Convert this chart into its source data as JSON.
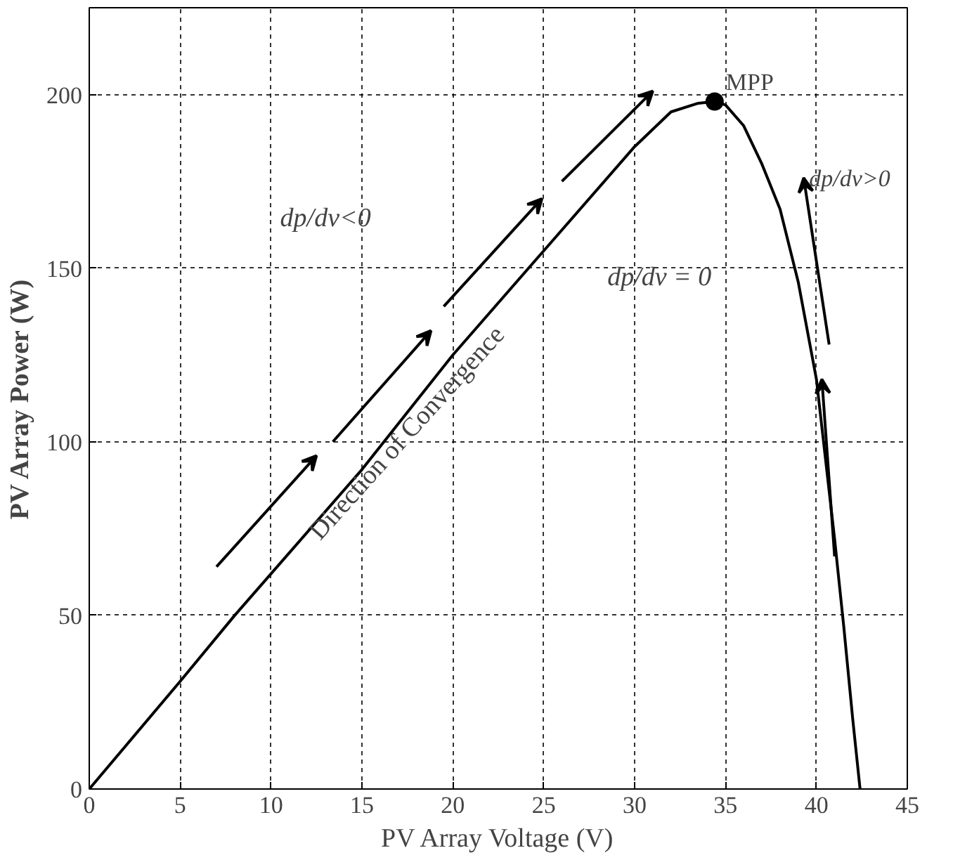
{
  "chart_data": {
    "type": "line",
    "xlabel": "PV Array Voltage (V)",
    "ylabel": "PV Array Power (W)",
    "series": [
      {
        "color": "#000000",
        "marker": "none",
        "x": [
          0,
          5,
          8,
          15,
          20,
          25,
          30,
          32,
          33.5,
          34.4,
          35,
          36,
          37,
          38,
          39,
          40,
          41,
          41.5,
          42,
          42.4
        ],
        "values": [
          0,
          31,
          50,
          92,
          125,
          155,
          185,
          195,
          197.5,
          198,
          197,
          191,
          180,
          167,
          146,
          118,
          72,
          47,
          20,
          0
        ]
      },
      {
        "type": "scatter",
        "color": "#000000",
        "marker": "circle",
        "x": [
          34.4
        ],
        "values": [
          198
        ]
      }
    ],
    "xlim": [
      0,
      45
    ],
    "ylim": [
      0,
      225
    ],
    "xticks": [
      0,
      5,
      10,
      15,
      20,
      25,
      30,
      35,
      40,
      45
    ],
    "yticks": [
      0,
      50,
      100,
      150,
      200
    ],
    "grid": true,
    "line_style": "solid",
    "annotations": [
      {
        "text": "MPP",
        "x": 34.4,
        "y": 198
      },
      "dp/dv<0",
      "dp/dv = 0",
      "dp/dv>0",
      "Direction of Convergence"
    ]
  }
}
